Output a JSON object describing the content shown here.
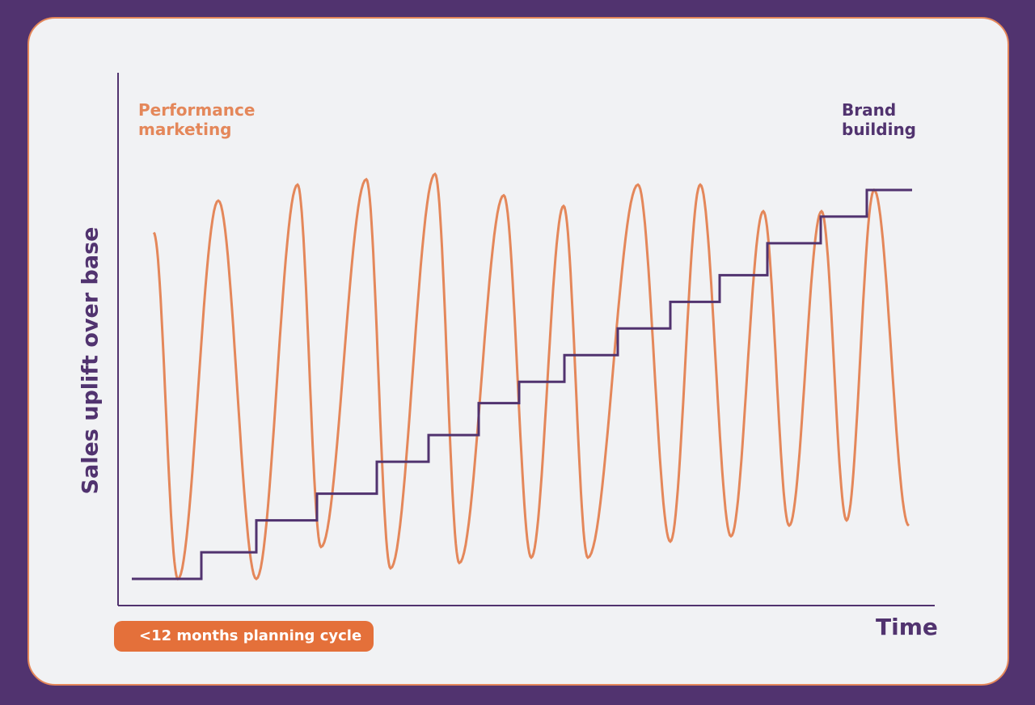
{
  "chart_data": {
    "type": "line",
    "title": "",
    "xlabel": "Time",
    "ylabel": "Sales uplift over base",
    "series": [
      {
        "name": "Performance marketing",
        "color": "#e4875a",
        "style": "oscillating",
        "peaks": [
          {
            "x": 270,
            "y": 0.76
          },
          {
            "x": 368,
            "y": 0.79
          },
          {
            "x": 453,
            "y": 0.8
          },
          {
            "x": 538,
            "y": 0.81
          },
          {
            "x": 623,
            "y": 0.77
          },
          {
            "x": 697,
            "y": 0.75
          },
          {
            "x": 789,
            "y": 0.79
          },
          {
            "x": 866,
            "y": 0.79
          },
          {
            "x": 944,
            "y": 0.74
          },
          {
            "x": 1016,
            "y": 0.74
          },
          {
            "x": 1081,
            "y": 0.78
          }
        ],
        "troughs": [
          {
            "x": 220,
            "y": 0.05
          },
          {
            "x": 317,
            "y": 0.05
          },
          {
            "x": 397,
            "y": 0.11
          },
          {
            "x": 483,
            "y": 0.07
          },
          {
            "x": 568,
            "y": 0.08
          },
          {
            "x": 657,
            "y": 0.09
          },
          {
            "x": 727,
            "y": 0.09
          },
          {
            "x": 829,
            "y": 0.12
          },
          {
            "x": 904,
            "y": 0.13
          },
          {
            "x": 976,
            "y": 0.15
          },
          {
            "x": 1047,
            "y": 0.16
          }
        ],
        "start": {
          "x": 190,
          "y": 0.7
        },
        "end": {
          "x": 1124,
          "y": 0.15
        }
      },
      {
        "name": "Brand building",
        "color": "#51336f",
        "style": "step",
        "steps": [
          {
            "x": 163,
            "y": 0.05
          },
          {
            "x": 249,
            "y": 0.1
          },
          {
            "x": 317,
            "y": 0.16
          },
          {
            "x": 392,
            "y": 0.21
          },
          {
            "x": 466,
            "y": 0.27
          },
          {
            "x": 530,
            "y": 0.32
          },
          {
            "x": 592,
            "y": 0.38
          },
          {
            "x": 642,
            "y": 0.42
          },
          {
            "x": 698,
            "y": 0.47
          },
          {
            "x": 764,
            "y": 0.52
          },
          {
            "x": 829,
            "y": 0.57
          },
          {
            "x": 890,
            "y": 0.62
          },
          {
            "x": 949,
            "y": 0.68
          },
          {
            "x": 1015,
            "y": 0.73
          },
          {
            "x": 1072,
            "y": 0.78
          }
        ],
        "end_x": 1128
      }
    ],
    "grid": false,
    "legend": "inline labels top-left and top-right"
  },
  "labels": {
    "performance": "Performance\nmarketing",
    "brand": "Brand\nbuilding",
    "y_axis": "Sales uplift over base",
    "x_axis": "Time",
    "cycle": "<12 months planning cycle"
  },
  "colors": {
    "background": "#51336f",
    "panel": "#f1f2f4",
    "performance": "#e4875a",
    "brand": "#51336f",
    "badge": "#e4703a"
  }
}
